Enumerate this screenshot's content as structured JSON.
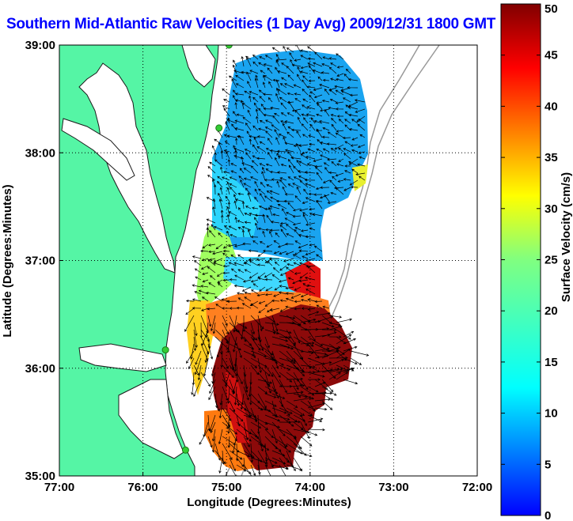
{
  "title": "Southern Mid-Atlantic Raw Velocities (1 Day Avg) 2009/12/31 1800 GMT",
  "x_axis": {
    "label": "Longitude (Degrees:Minutes)",
    "ticks": [
      {
        "value": -77,
        "label": "77:00"
      },
      {
        "value": -76,
        "label": "76:00"
      },
      {
        "value": -75,
        "label": "75:00"
      },
      {
        "value": -74,
        "label": "74:00"
      },
      {
        "value": -73,
        "label": "73:00"
      },
      {
        "value": -72,
        "label": "72:00"
      }
    ]
  },
  "y_axis": {
    "label": "Latitude (Degrees:Minutes)",
    "ticks": [
      {
        "value": 39,
        "label": "39:00"
      },
      {
        "value": 38,
        "label": "38:00"
      },
      {
        "value": 37,
        "label": "37:00"
      },
      {
        "value": 36,
        "label": "36:00"
      },
      {
        "value": 35,
        "label": "35:00"
      }
    ]
  },
  "colorbar": {
    "label": "Surface Velocity (cm/s)",
    "min": 0,
    "max": 50,
    "ticks": [
      {
        "value": 50,
        "label": "50"
      },
      {
        "value": 45,
        "label": "45"
      },
      {
        "value": 40,
        "label": "40"
      },
      {
        "value": 35,
        "label": "35"
      },
      {
        "value": 30,
        "label": "30"
      },
      {
        "value": 25,
        "label": "25"
      },
      {
        "value": 20,
        "label": "20"
      },
      {
        "value": 15,
        "label": "15"
      },
      {
        "value": 10,
        "label": "10"
      },
      {
        "value": 5,
        "label": "5"
      },
      {
        "value": 0,
        "label": "0"
      }
    ]
  },
  "colors": {
    "land": "#55f5a5",
    "water": "#ffffff",
    "coastline": "#1a1a1a",
    "bathymetry": "#999999",
    "grid": "#000000",
    "vectors": "#000000",
    "stations": "#33cc33",
    "title": "#0000ff"
  },
  "chart_data": {
    "type": "heatmap",
    "title": "Southern Mid-Atlantic Raw Velocities (1 Day Avg) 2009/12/31 1800 GMT",
    "xlabel": "Longitude (Degrees:Minutes)",
    "ylabel": "Latitude (Degrees:Minutes)",
    "xlim": [
      -77,
      -72
    ],
    "ylim": [
      35,
      39
    ],
    "grid": true,
    "colorbar_range": [
      0,
      50
    ],
    "regions": [
      {
        "lon_range": [
          -74.9,
          -73.3
        ],
        "lat_range": [
          37.6,
          39.0
        ],
        "speed": 12
      },
      {
        "lon_range": [
          -75.1,
          -74.1
        ],
        "lat_range": [
          36.9,
          37.7
        ],
        "speed": 13
      },
      {
        "lon_range": [
          -74.1,
          -73.8
        ],
        "lat_range": [
          36.5,
          36.9
        ],
        "speed": 45
      },
      {
        "lon_range": [
          -75.0,
          -73.6
        ],
        "lat_range": [
          35.1,
          36.6
        ],
        "speed": 50
      },
      {
        "lon_range": [
          -75.2,
          -74.6
        ],
        "lat_range": [
          35.1,
          35.6
        ],
        "speed": 32
      }
    ],
    "stations": [
      {
        "lon": -74.97,
        "lat": 39.0
      },
      {
        "lon": -75.09,
        "lat": 38.23
      },
      {
        "lon": -75.73,
        "lat": 36.17
      },
      {
        "lon": -75.49,
        "lat": 35.24
      }
    ]
  }
}
